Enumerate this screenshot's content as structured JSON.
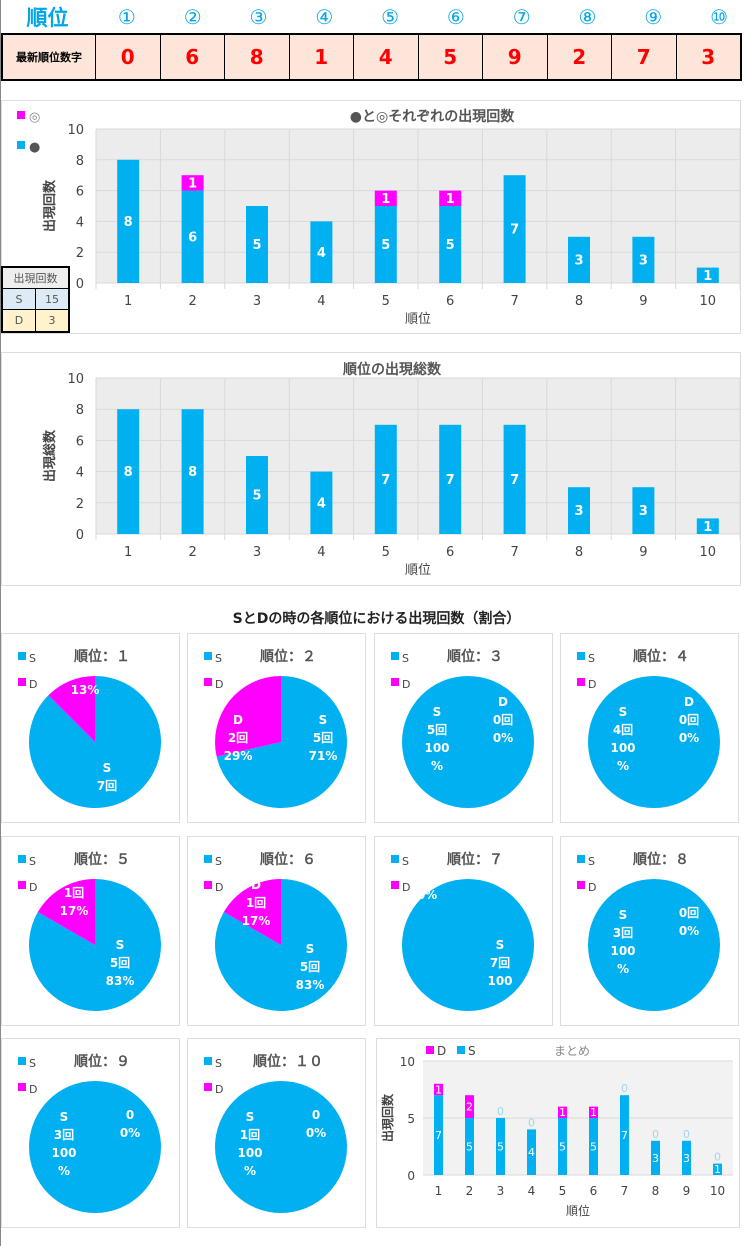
{
  "header": {
    "title": "順位",
    "ranks": [
      "①",
      "②",
      "③",
      "④",
      "⑤",
      "⑥",
      "⑦",
      "⑧",
      "⑨",
      "⑩"
    ]
  },
  "latest": {
    "label": "最新順位数字",
    "digits": [
      "0",
      "6",
      "8",
      "1",
      "4",
      "5",
      "9",
      "2",
      "7",
      "3"
    ]
  },
  "colors": {
    "s": "#00b0f0",
    "d": "#ff00ff",
    "red": "#ff0000",
    "accent": "#00a6e6"
  },
  "chart1": {
    "title": "●と◎それぞれの出現回数",
    "ylabel": "出現回数",
    "xlabel": "順位",
    "legend": [
      "◎",
      "●"
    ],
    "ylim": [
      0,
      10
    ],
    "yticks": [
      "0",
      "2",
      "4",
      "6",
      "8",
      "10"
    ],
    "categories": [
      "1",
      "2",
      "3",
      "4",
      "5",
      "6",
      "7",
      "8",
      "9",
      "10"
    ],
    "series": [
      {
        "name": "●",
        "values": [
          8,
          6,
          5,
          4,
          5,
          5,
          7,
          3,
          3,
          1
        ]
      },
      {
        "name": "◎",
        "values": [
          0,
          1,
          0,
          0,
          1,
          1,
          0,
          0,
          0,
          0
        ]
      }
    ]
  },
  "counts": {
    "header": "出現回数",
    "rows": [
      {
        "label": "S",
        "value": "15"
      },
      {
        "label": "D",
        "value": "3"
      }
    ]
  },
  "chart2": {
    "title": "順位の出現総数",
    "ylabel": "出現総数",
    "xlabel": "順位",
    "ylim": [
      0,
      10
    ],
    "yticks": [
      "0",
      "2",
      "4",
      "6",
      "8",
      "10"
    ],
    "categories": [
      "1",
      "2",
      "3",
      "4",
      "5",
      "6",
      "7",
      "8",
      "9",
      "10"
    ],
    "series": [
      {
        "name": "総数",
        "values": [
          8,
          8,
          5,
          4,
          7,
          7,
          7,
          3,
          3,
          1
        ]
      }
    ]
  },
  "pies_title": "SとDの時の各順位における出現回数（割合）",
  "pie_legend": [
    "S",
    "D"
  ],
  "pies": [
    {
      "title": "順位：１",
      "s": 7,
      "d": 1,
      "s_label": [
        "S",
        "7回"
      ],
      "d_label": [
        "13%"
      ]
    },
    {
      "title": "順位：２",
      "s": 5,
      "d": 2,
      "s_label": [
        "S",
        "5回",
        "71%"
      ],
      "d_label": [
        "D",
        "2回",
        "29%"
      ]
    },
    {
      "title": "順位：３",
      "s": 5,
      "d": 0,
      "s_label": [
        "S",
        "5回",
        "100",
        "%"
      ],
      "d_label": [
        "D",
        "0回",
        "0%"
      ]
    },
    {
      "title": "順位：４",
      "s": 4,
      "d": 0,
      "s_label": [
        "S",
        "4回",
        "100",
        "%"
      ],
      "d_label": [
        "D",
        "0回",
        "0%"
      ]
    },
    {
      "title": "順位：５",
      "s": 5,
      "d": 1,
      "s_label": [
        "S",
        "5回",
        "83%"
      ],
      "d_label": [
        "1回",
        "17%"
      ]
    },
    {
      "title": "順位：６",
      "s": 5,
      "d": 1,
      "s_label": [
        "S",
        "5回",
        "83%"
      ],
      "d_label": [
        "D",
        "1回",
        "17%"
      ]
    },
    {
      "title": "順位：７",
      "s": 7,
      "d": 0,
      "s_label": [
        "S",
        "7回",
        "100"
      ],
      "d_label": [
        "0%"
      ]
    },
    {
      "title": "順位：８",
      "s": 3,
      "d": 0,
      "s_label": [
        "S",
        "3回",
        "100",
        "%"
      ],
      "d_label": [
        "0回",
        "0%"
      ]
    },
    {
      "title": "順位：９",
      "s": 3,
      "d": 0,
      "s_label": [
        "S",
        "3回",
        "100",
        "%"
      ],
      "d_label": [
        "0",
        "0%"
      ]
    },
    {
      "title": "順位：１０",
      "s": 1,
      "d": 0,
      "s_label": [
        "S",
        "1回",
        "100",
        "%"
      ],
      "d_label": [
        "0",
        "0%"
      ]
    }
  ],
  "summary": {
    "title": "まとめ",
    "legend": [
      "D",
      "S"
    ],
    "ylabel": "出現回数",
    "xlabel": "順位",
    "ylim": [
      0,
      10
    ],
    "yticks": [
      "0",
      "5",
      "10"
    ],
    "categories": [
      "1",
      "2",
      "3",
      "4",
      "5",
      "6",
      "7",
      "8",
      "9",
      "10"
    ],
    "series": [
      {
        "name": "S",
        "values": [
          7,
          5,
          5,
          4,
          5,
          5,
          7,
          3,
          3,
          1
        ]
      },
      {
        "name": "D",
        "values": [
          1,
          2,
          0,
          0,
          1,
          1,
          0,
          0,
          0,
          0
        ]
      }
    ]
  }
}
